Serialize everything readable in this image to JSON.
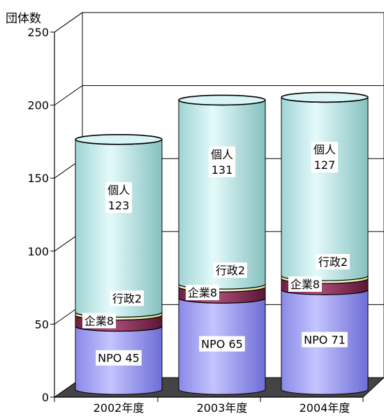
{
  "chart_data": {
    "type": "bar",
    "stacked": true,
    "style": "3d-cylinder",
    "ylabel": "団体数",
    "ylim": [
      0,
      250
    ],
    "yticks": [
      0,
      50,
      100,
      150,
      200,
      250
    ],
    "grid": true,
    "categories": [
      "2002年度",
      "2003年度",
      "2004年度"
    ],
    "series": [
      {
        "name": "NPO",
        "values": [
          45,
          65,
          71
        ],
        "labels": [
          "NPO 45",
          "NPO 65",
          "NPO 71"
        ],
        "color": "#9f9ff5"
      },
      {
        "name": "企業",
        "values": [
          8,
          8,
          8
        ],
        "labels": [
          "企業8",
          "企業8",
          "企業8"
        ],
        "color": "#8a2a56"
      },
      {
        "name": "行政",
        "values": [
          2,
          2,
          2
        ],
        "labels": [
          "行政2",
          "行政2",
          "行政2"
        ],
        "color": "#ffffd0"
      },
      {
        "name": "個人",
        "values": [
          123,
          131,
          127
        ],
        "labels": [
          "個人\n123",
          "個人\n131",
          "個人\n127"
        ],
        "color": "#b8e6e6"
      }
    ]
  }
}
